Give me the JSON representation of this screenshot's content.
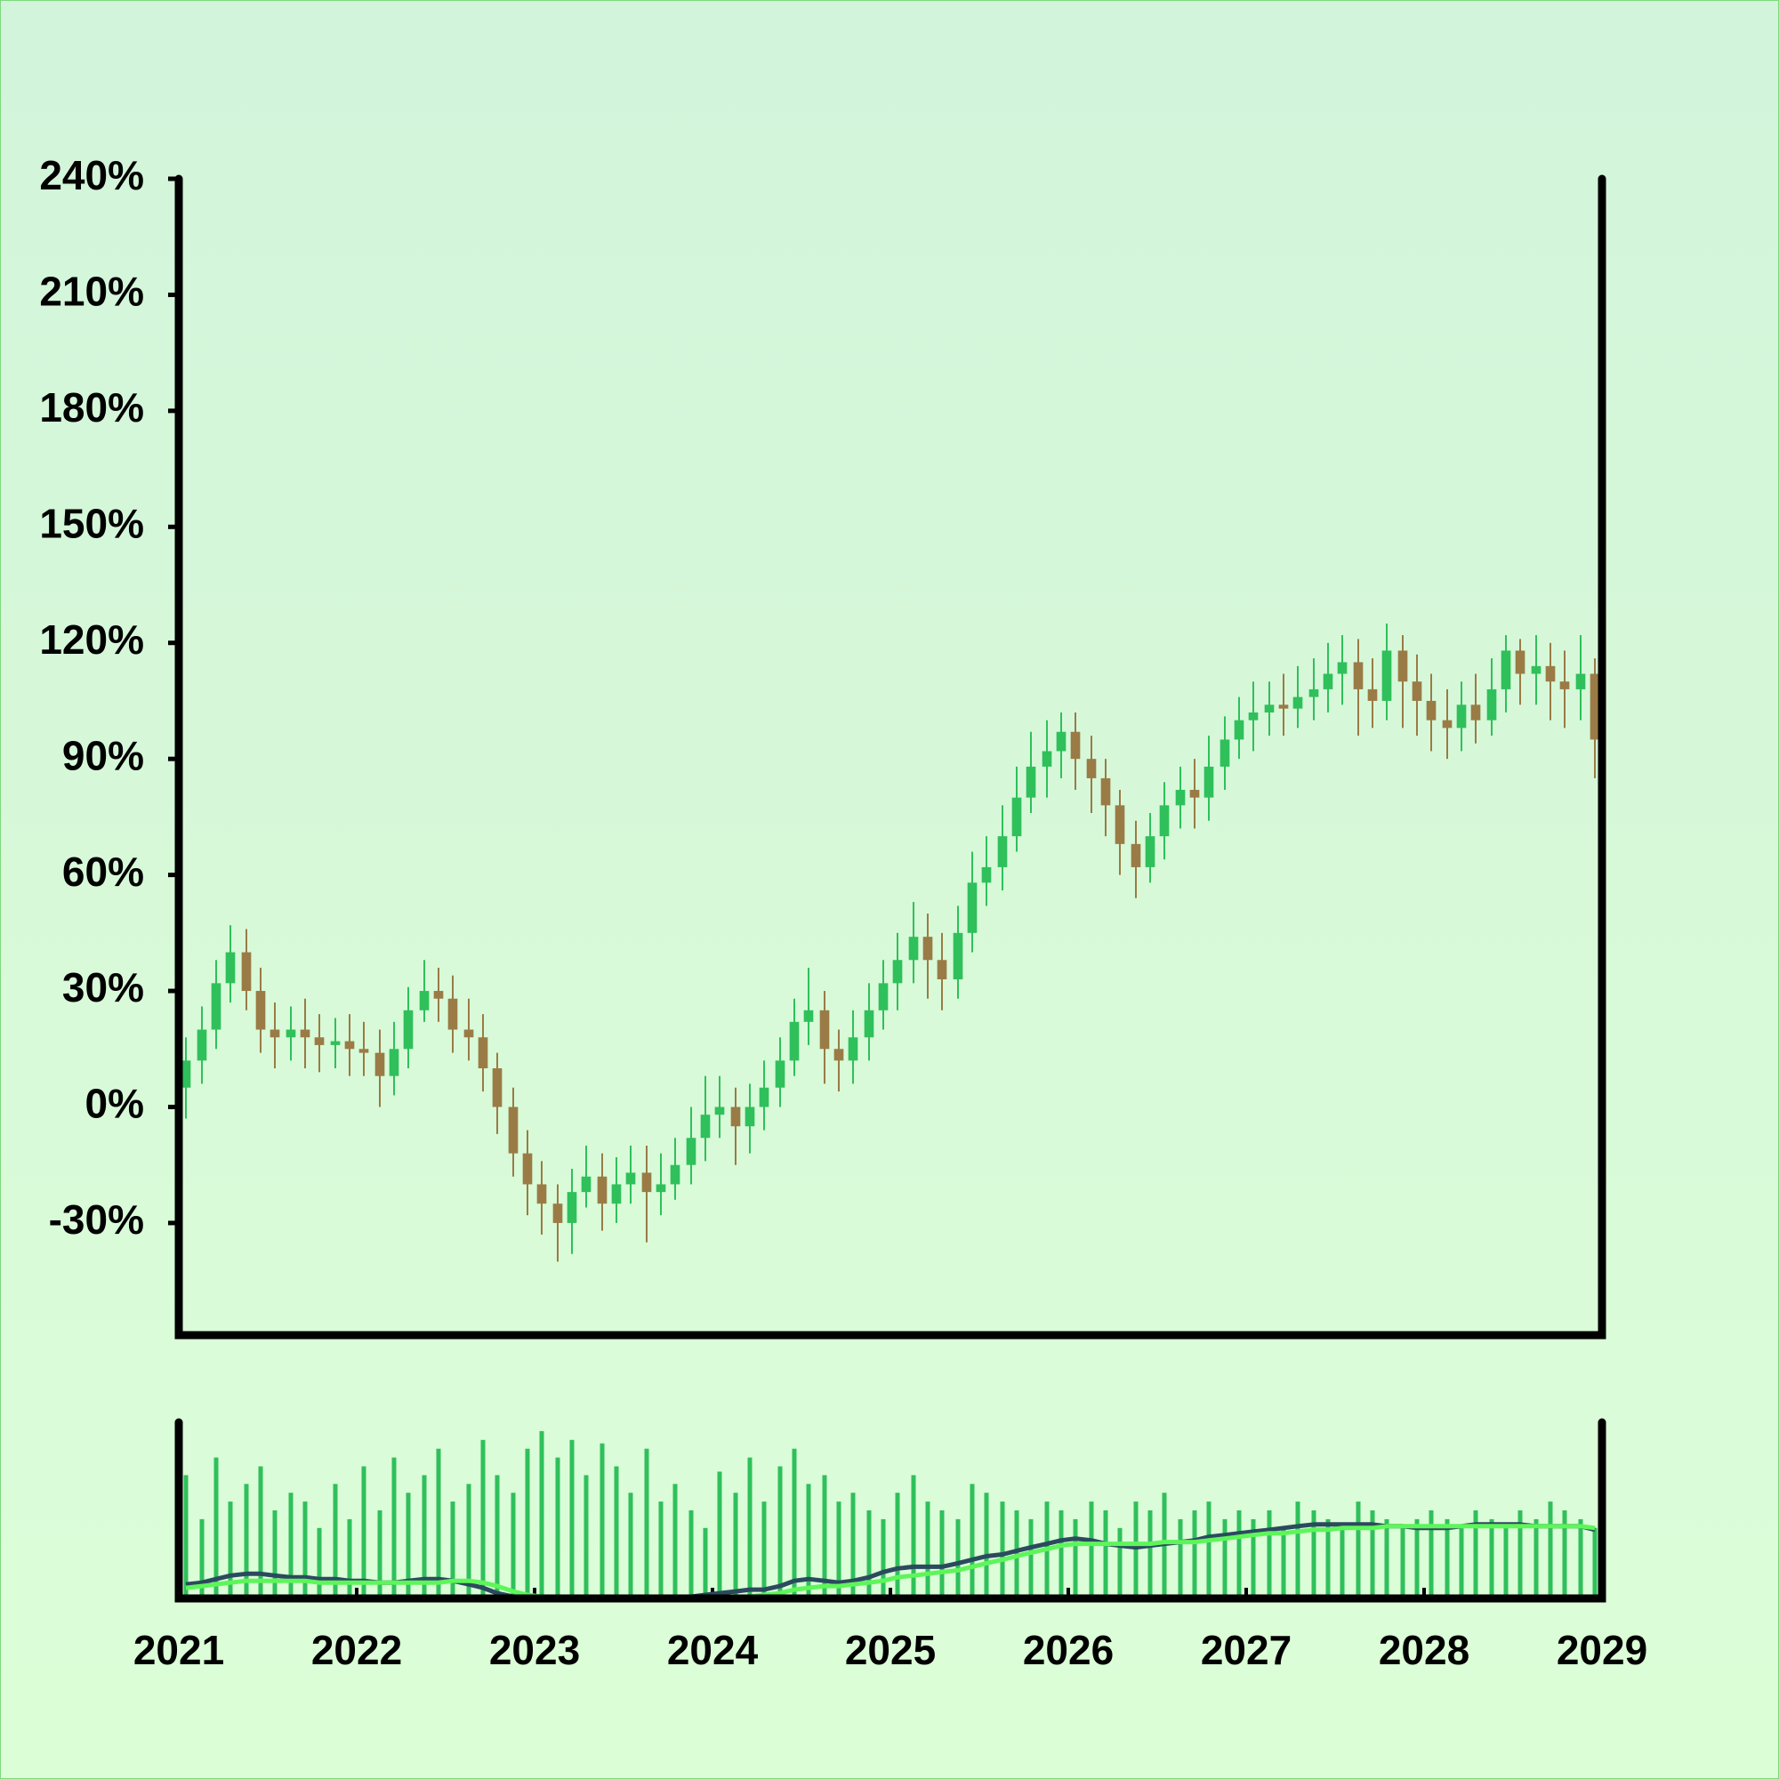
{
  "chart_data": {
    "type": "candlestick",
    "x": [
      2021.04,
      2021.13,
      2021.21,
      2021.29,
      2021.38,
      2021.46,
      2021.54,
      2021.63,
      2021.71,
      2021.79,
      2021.88,
      2021.96,
      2022.04,
      2022.13,
      2022.21,
      2022.29,
      2022.38,
      2022.46,
      2022.54,
      2022.63,
      2022.71,
      2022.79,
      2022.88,
      2022.96,
      2023.04,
      2023.13,
      2023.21,
      2023.29,
      2023.38,
      2023.46,
      2023.54,
      2023.63,
      2023.71,
      2023.79,
      2023.88,
      2023.96,
      2024.04,
      2024.13,
      2024.21,
      2024.29,
      2024.38,
      2024.46,
      2024.54,
      2024.63,
      2024.71,
      2024.79,
      2024.88,
      2024.96,
      2025.04,
      2025.13,
      2025.21,
      2025.29,
      2025.38,
      2025.46,
      2025.54,
      2025.63,
      2025.71,
      2025.79,
      2025.88,
      2025.96,
      2026.04,
      2026.13,
      2026.21,
      2026.29,
      2026.38,
      2026.46,
      2026.54,
      2026.63,
      2026.71,
      2026.79,
      2026.88,
      2026.96,
      2027.04,
      2027.13,
      2027.21,
      2027.29,
      2027.38,
      2027.46,
      2027.54,
      2027.63,
      2027.71,
      2027.79,
      2027.88,
      2027.96,
      2028.04,
      2028.13,
      2028.21,
      2028.29,
      2028.38,
      2028.46,
      2028.54,
      2028.63,
      2028.71,
      2028.79,
      2028.88,
      2028.96
    ],
    "open": [
      5,
      12,
      20,
      32,
      40,
      30,
      20,
      18,
      20,
      18,
      16,
      17,
      15,
      14,
      8,
      15,
      25,
      30,
      28,
      20,
      18,
      10,
      0,
      -12,
      -20,
      -25,
      -30,
      -22,
      -18,
      -25,
      -20,
      -17,
      -22,
      -20,
      -15,
      -8,
      -2,
      0,
      -5,
      0,
      5,
      12,
      22,
      25,
      15,
      12,
      18,
      25,
      32,
      38,
      44,
      38,
      33,
      45,
      58,
      62,
      70,
      80,
      88,
      92,
      97,
      90,
      85,
      78,
      68,
      62,
      70,
      78,
      82,
      80,
      88,
      95,
      100,
      102,
      104,
      103,
      106,
      108,
      112,
      115,
      108,
      105,
      118,
      110,
      105,
      100,
      98,
      104,
      100,
      108,
      118,
      112,
      114,
      110,
      108,
      112
    ],
    "high": [
      18,
      26,
      38,
      47,
      46,
      36,
      27,
      26,
      28,
      24,
      23,
      24,
      22,
      20,
      22,
      31,
      38,
      36,
      34,
      28,
      24,
      14,
      5,
      -6,
      -14,
      -20,
      -16,
      -10,
      -12,
      -13,
      -10,
      -10,
      -12,
      -8,
      0,
      8,
      8,
      5,
      6,
      12,
      18,
      28,
      36,
      30,
      20,
      25,
      32,
      38,
      45,
      53,
      50,
      45,
      52,
      66,
      70,
      78,
      88,
      97,
      100,
      102,
      102,
      96,
      90,
      82,
      74,
      76,
      84,
      88,
      90,
      96,
      101,
      106,
      110,
      110,
      112,
      114,
      116,
      120,
      122,
      121,
      116,
      125,
      122,
      117,
      112,
      108,
      110,
      112,
      116,
      122,
      121,
      122,
      120,
      118,
      122,
      116
    ],
    "low": [
      -3,
      6,
      15,
      27,
      25,
      14,
      10,
      12,
      10,
      9,
      10,
      8,
      8,
      0,
      3,
      10,
      22,
      22,
      14,
      12,
      4,
      -7,
      -18,
      -28,
      -33,
      -40,
      -38,
      -26,
      -32,
      -30,
      -25,
      -35,
      -28,
      -24,
      -20,
      -14,
      -8,
      -15,
      -12,
      -6,
      0,
      8,
      16,
      6,
      4,
      6,
      12,
      20,
      25,
      32,
      28,
      25,
      28,
      40,
      52,
      56,
      66,
      76,
      80,
      85,
      82,
      76,
      70,
      60,
      54,
      58,
      64,
      72,
      72,
      74,
      82,
      90,
      92,
      96,
      96,
      98,
      100,
      102,
      104,
      96,
      98,
      100,
      98,
      96,
      92,
      90,
      92,
      94,
      96,
      102,
      104,
      104,
      100,
      98,
      100,
      85
    ],
    "close": [
      12,
      20,
      32,
      40,
      30,
      20,
      18,
      20,
      18,
      16,
      17,
      15,
      14,
      8,
      15,
      25,
      30,
      28,
      20,
      18,
      10,
      0,
      -12,
      -20,
      -25,
      -30,
      -22,
      -18,
      -25,
      -20,
      -17,
      -22,
      -20,
      -15,
      -8,
      -2,
      0,
      -5,
      0,
      5,
      12,
      22,
      25,
      15,
      12,
      18,
      25,
      32,
      38,
      44,
      38,
      33,
      45,
      58,
      62,
      70,
      80,
      88,
      92,
      97,
      90,
      85,
      78,
      68,
      62,
      70,
      78,
      82,
      80,
      88,
      95,
      100,
      102,
      104,
      103,
      106,
      108,
      112,
      115,
      108,
      105,
      118,
      110,
      105,
      100,
      98,
      104,
      100,
      108,
      118,
      112,
      114,
      110,
      108,
      112,
      95
    ],
    "up_color": "#2fc05b",
    "down_color": "#9a7b46",
    "xlim": [
      2021,
      2029
    ],
    "xticks": [
      2021,
      2022,
      2023,
      2024,
      2025,
      2026,
      2027,
      2028,
      2029
    ],
    "ylim": [
      -59,
      240
    ],
    "yticks": [
      {
        "value": -30,
        "label": "-30%"
      },
      {
        "value": 0,
        "label": "0%"
      },
      {
        "value": 30,
        "label": "30%"
      },
      {
        "value": 60,
        "label": "60%"
      },
      {
        "value": 90,
        "label": "90%"
      },
      {
        "value": 120,
        "label": "120%"
      },
      {
        "value": 150,
        "label": "150%"
      },
      {
        "value": 180,
        "label": "180%"
      },
      {
        "value": 210,
        "label": "210%"
      },
      {
        "value": 240,
        "label": "240%"
      }
    ],
    "volume": {
      "color": "#2fc05b",
      "ylim": [
        0,
        100
      ],
      "values": [
        70,
        45,
        80,
        55,
        65,
        75,
        50,
        60,
        55,
        40,
        65,
        45,
        75,
        50,
        80,
        60,
        70,
        85,
        55,
        65,
        90,
        70,
        60,
        85,
        95,
        80,
        90,
        70,
        88,
        75,
        60,
        85,
        55,
        65,
        50,
        40,
        72,
        60,
        80,
        55,
        75,
        85,
        65,
        70,
        55,
        60,
        50,
        45,
        60,
        70,
        55,
        50,
        45,
        65,
        60,
        55,
        50,
        45,
        55,
        50,
        45,
        55,
        50,
        40,
        55,
        50,
        60,
        45,
        50,
        55,
        45,
        50,
        45,
        50,
        40,
        55,
        50,
        45,
        40,
        55,
        50,
        45,
        40,
        45,
        50,
        45,
        40,
        50,
        45,
        40,
        50,
        45,
        55,
        50,
        45,
        40
      ],
      "lines": [
        {
          "color": "#2b4a5e",
          "values": [
            8,
            9,
            11,
            13,
            14,
            14,
            13,
            12,
            12,
            11,
            11,
            10,
            10,
            9,
            9,
            10,
            11,
            11,
            10,
            8,
            6,
            3,
            1,
            0,
            0,
            0,
            0,
            0,
            0,
            0,
            1,
            1,
            1,
            0,
            1,
            2,
            3,
            4,
            5,
            5,
            7,
            10,
            11,
            10,
            9,
            10,
            12,
            15,
            17,
            18,
            18,
            18,
            20,
            22,
            24,
            25,
            27,
            29,
            31,
            33,
            34,
            33,
            31,
            30,
            29,
            30,
            31,
            32,
            33,
            35,
            36,
            37,
            38,
            39,
            40,
            41,
            42,
            42,
            42,
            42,
            42,
            41,
            41,
            40,
            40,
            40,
            41,
            42,
            42,
            42,
            42,
            41,
            41,
            41,
            41,
            39
          ]
        },
        {
          "color": "#5ef55a",
          "values": [
            6,
            7,
            8,
            9,
            10,
            10,
            10,
            10,
            10,
            9,
            9,
            9,
            9,
            9,
            9,
            9,
            9,
            9,
            10,
            10,
            9,
            7,
            4,
            2,
            1,
            0,
            0,
            0,
            0,
            0,
            0,
            0,
            0,
            0,
            0,
            0,
            0,
            1,
            1,
            2,
            3,
            5,
            6,
            7,
            7,
            8,
            9,
            10,
            12,
            13,
            14,
            15,
            16,
            18,
            20,
            22,
            24,
            26,
            28,
            30,
            31,
            31,
            31,
            31,
            31,
            31,
            32,
            32,
            32,
            33,
            34,
            35,
            36,
            37,
            37,
            38,
            39,
            39,
            40,
            40,
            40,
            41,
            41,
            41,
            41,
            41,
            41,
            41,
            41,
            41,
            41,
            41,
            41,
            41,
            41,
            40
          ]
        }
      ]
    }
  }
}
